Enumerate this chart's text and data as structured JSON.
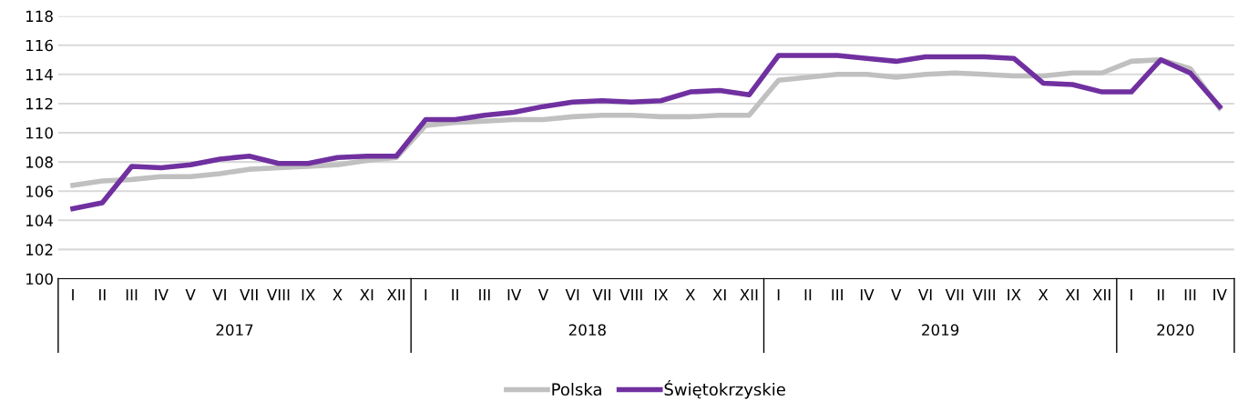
{
  "chart_data": {
    "type": "line",
    "categories": [
      "I",
      "II",
      "III",
      "IV",
      "V",
      "VI",
      "VII",
      "VIII",
      "IX",
      "X",
      "XI",
      "XII",
      "I",
      "II",
      "III",
      "IV",
      "V",
      "VI",
      "VII",
      "VIII",
      "IX",
      "X",
      "XI",
      "XII",
      "I",
      "II",
      "III",
      "IV",
      "V",
      "VI",
      "VII",
      "VIII",
      "IX",
      "X",
      "XI",
      "XII",
      "I",
      "II",
      "III",
      "IV"
    ],
    "series": [
      {
        "name": "Polska",
        "color": "#c0c0c0",
        "values": [
          106.4,
          106.7,
          106.8,
          107.0,
          107.0,
          107.2,
          107.5,
          107.6,
          107.7,
          107.8,
          108.1,
          108.3,
          110.5,
          110.7,
          110.8,
          110.9,
          110.9,
          111.1,
          111.2,
          111.2,
          111.1,
          111.1,
          111.2,
          111.2,
          113.6,
          113.8,
          114.0,
          114.0,
          113.8,
          114.0,
          114.1,
          114.0,
          113.9,
          113.9,
          114.1,
          114.1,
          114.9,
          115.0,
          114.4,
          111.7
        ]
      },
      {
        "name": "Świętokrzyskie",
        "color": "#7030a0",
        "values": [
          104.8,
          105.2,
          107.7,
          107.6,
          107.8,
          108.2,
          108.4,
          107.9,
          107.9,
          108.3,
          108.4,
          108.4,
          110.9,
          110.9,
          111.2,
          111.4,
          111.8,
          112.1,
          112.2,
          112.1,
          112.2,
          112.8,
          112.9,
          112.6,
          115.3,
          115.3,
          115.3,
          115.1,
          114.9,
          115.2,
          115.2,
          115.2,
          115.1,
          113.4,
          113.3,
          112.8,
          112.8,
          115.0,
          114.1,
          111.8
        ]
      }
    ],
    "annotations": [
      "2017",
      "2018",
      "2019",
      "2020"
    ],
    "ylim": [
      100,
      118
    ],
    "yticks": [
      100,
      102,
      104,
      106,
      108,
      110,
      112,
      114,
      116,
      118
    ],
    "grid": "y",
    "legend": "bottom",
    "marker": "none",
    "line_style": "solid"
  }
}
